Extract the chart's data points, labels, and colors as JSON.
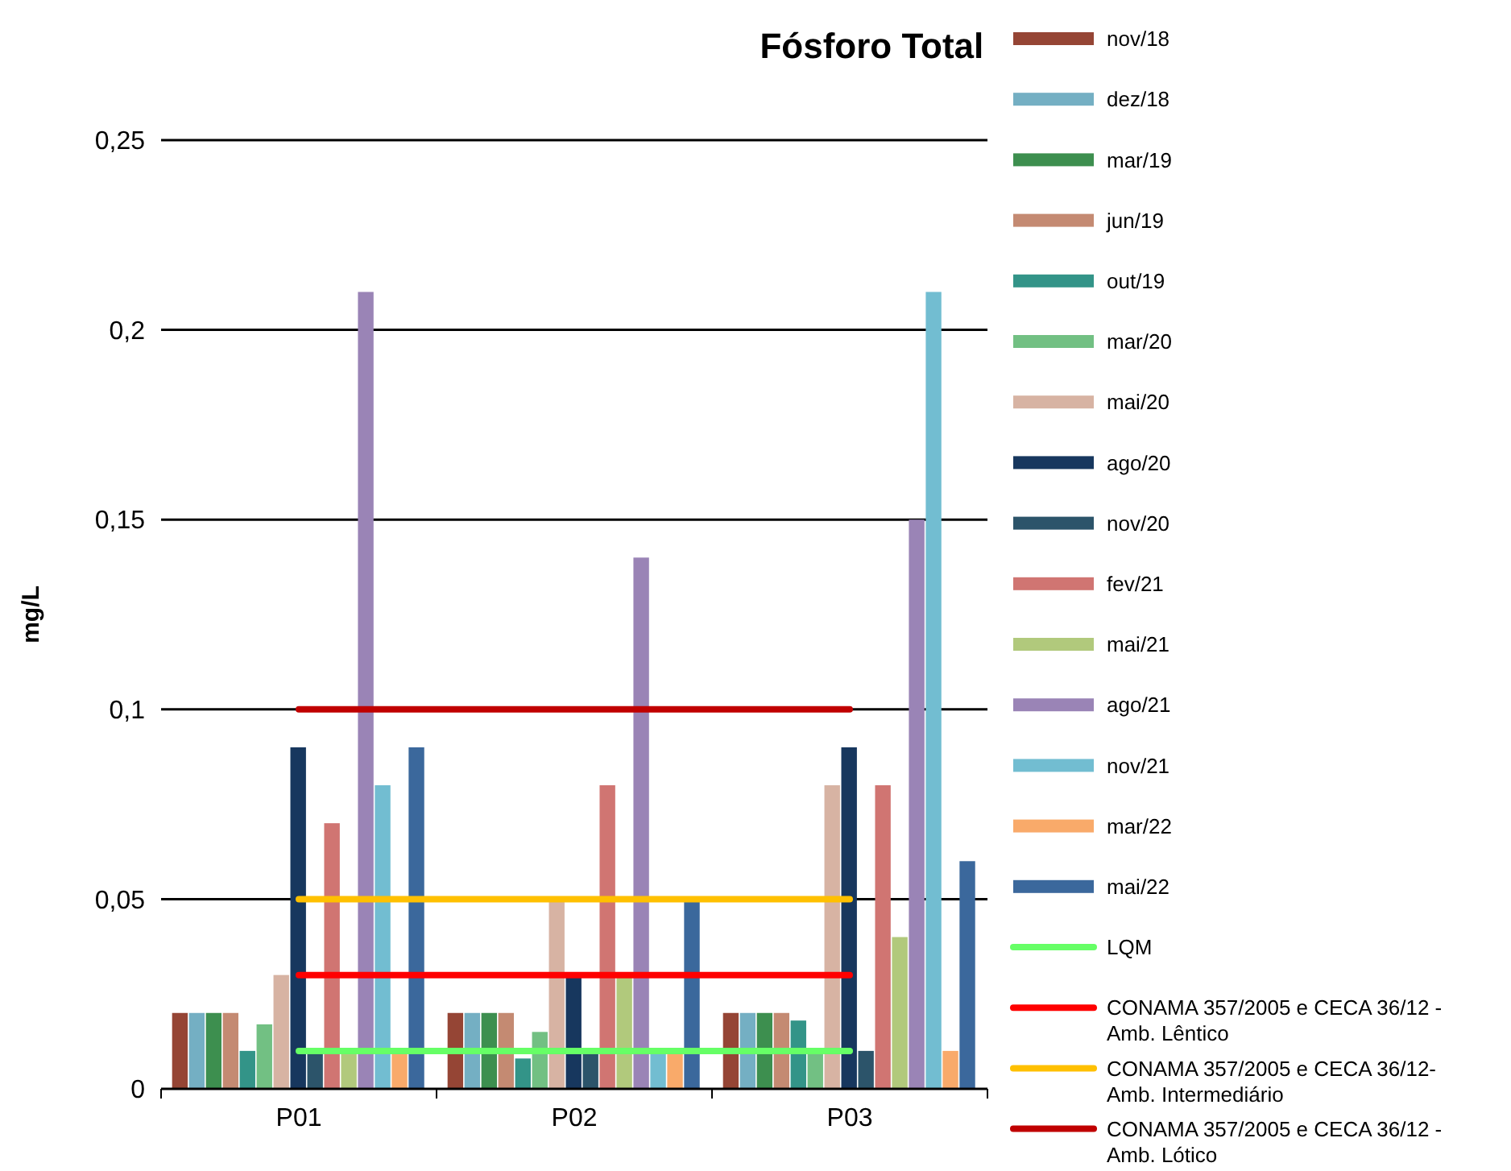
{
  "chart_data": {
    "type": "bar",
    "title": "Fósforo Total",
    "ylabel": "mg/L",
    "categories": [
      "P01",
      "P02",
      "P03"
    ],
    "ylim": [
      0,
      0.25
    ],
    "yticks": [
      0,
      {
        "value": 0.05,
        "label": "0,05"
      },
      {
        "value": 0.1,
        "label": "0,1"
      },
      {
        "value": 0.15,
        "label": "0,15"
      },
      {
        "value": 0.2,
        "label": "0,2"
      },
      {
        "value": 0.25,
        "label": "0,25"
      }
    ],
    "grid": "y",
    "legend": "right",
    "series": [
      {
        "name": "nov/18",
        "color": "#954535",
        "values": [
          0.02,
          0.02,
          0.02
        ]
      },
      {
        "name": "dez/18",
        "color": "#74afc3",
        "values": [
          0.02,
          0.02,
          0.02
        ]
      },
      {
        "name": "mar/19",
        "color": "#3d8f4f",
        "values": [
          0.02,
          0.02,
          0.02
        ]
      },
      {
        "name": "jun/19",
        "color": "#c48a72",
        "values": [
          0.02,
          0.02,
          0.02
        ]
      },
      {
        "name": "out/19",
        "color": "#339488",
        "values": [
          0.01,
          0.008,
          0.018
        ]
      },
      {
        "name": "mar/20",
        "color": "#72c083",
        "values": [
          0.017,
          0.015,
          0.01
        ]
      },
      {
        "name": "mai/20",
        "color": "#d7b3a3",
        "values": [
          0.03,
          0.05,
          0.08
        ]
      },
      {
        "name": "ago/20",
        "color": "#17375e",
        "values": [
          0.09,
          0.03,
          0.09
        ]
      },
      {
        "name": "nov/20",
        "color": "#2c546a",
        "values": [
          0.01,
          0.01,
          0.01
        ]
      },
      {
        "name": "fev/21",
        "color": "#d07572",
        "values": [
          0.07,
          0.08,
          0.08
        ]
      },
      {
        "name": "mai/21",
        "color": "#b1c97c",
        "values": [
          0.01,
          0.03,
          0.04
        ]
      },
      {
        "name": "ago/21",
        "color": "#9a84b6",
        "values": [
          0.21,
          0.14,
          0.15
        ]
      },
      {
        "name": "nov/21",
        "color": "#72bdd1",
        "values": [
          0.08,
          0.01,
          0.21
        ]
      },
      {
        "name": "mar/22",
        "color": "#f9aa6a",
        "values": [
          0.01,
          0.01,
          0.01
        ]
      },
      {
        "name": "mai/22",
        "color": "#3b689c",
        "values": [
          0.09,
          0.05,
          0.06
        ]
      },
      {
        "name": "LQM",
        "type": "line",
        "color": "#66ff66",
        "values": [
          0.01,
          0.01,
          0.01
        ]
      },
      {
        "name": "CONAMA 357/2005 e CECA 36/12 - Amb. Lêntico",
        "type": "line",
        "color": "#ff0000",
        "values": [
          0.03,
          0.03,
          0.03
        ]
      },
      {
        "name": "CONAMA 357/2005 e CECA 36/12- Amb. Intermediário",
        "type": "line",
        "color": "#ffc000",
        "values": [
          0.05,
          0.05,
          0.05
        ]
      },
      {
        "name": "CONAMA 357/2005 e CECA 36/12 - Amb. Lótico",
        "type": "line",
        "color": "#c00000",
        "values": [
          0.1,
          0.1,
          0.1
        ]
      }
    ]
  }
}
